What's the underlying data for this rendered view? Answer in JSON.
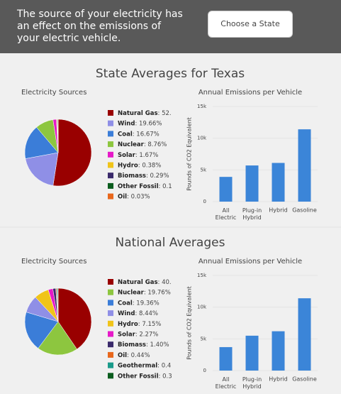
{
  "header": {
    "text": "The source of your electricity has an effect on the emissions of your electric vehicle.",
    "button": "Choose a State"
  },
  "sections": [
    "State Averages for Texas",
    "National Averages"
  ],
  "chart_data": [
    {
      "type": "pie",
      "title": "Electricity Sources",
      "categories": [
        "Natural Gas",
        "Wind",
        "Coal",
        "Nuclear",
        "Solar",
        "Hydro",
        "Biomass",
        "Other Fossil",
        "Oil"
      ],
      "values": [
        52.44,
        19.66,
        16.67,
        8.76,
        1.67,
        0.38,
        0.29,
        0.1,
        0.03
      ],
      "value_labels": [
        ": 52.",
        ": 19.66%",
        ": 16.67%",
        ": 8.76%",
        ": 1.67%",
        ": 0.38%",
        ": 0.29%",
        ": 0.1",
        ": 0.03%"
      ],
      "colors": [
        "#990000",
        "#8f8fe6",
        "#3b7dd8",
        "#8dc63f",
        "#e619c8",
        "#f0c419",
        "#3a2a6b",
        "#0b5d1e",
        "#e8671c"
      ]
    },
    {
      "type": "bar",
      "title": "Annual Emissions per Vehicle",
      "y_label": "Pounds of CO2 Equivalent",
      "categories": [
        "All Electric",
        "Plug-in Hybrid",
        "Hybrid",
        "Gasoline"
      ],
      "values": [
        3900,
        5700,
        6100,
        11400
      ],
      "color": "#3b85d8",
      "ylim": [
        0,
        15000
      ],
      "yticks": [
        0,
        {
          "value": 5000,
          "label": "5k"
        },
        {
          "value": 10000,
          "label": "10k"
        },
        {
          "value": 15000,
          "label": "15k"
        }
      ]
    },
    {
      "type": "pie",
      "title": "Electricity Sources",
      "categories": [
        "Natural Gas",
        "Nuclear",
        "Coal",
        "Wind",
        "Hydro",
        "Solar",
        "Biomass",
        "Oil",
        "Geothermal",
        "Other Fossil"
      ],
      "values": [
        40.48,
        19.76,
        19.36,
        8.44,
        7.15,
        2.27,
        1.4,
        0.44,
        0.4,
        0.3
      ],
      "value_labels": [
        ": 40.",
        ": 19.76%",
        ": 19.36%",
        ": 8.44%",
        ": 7.15%",
        ": 2.27%",
        ": 1.40%",
        ": 0.44%",
        ": 0.4",
        ": 0.3"
      ],
      "colors": [
        "#990000",
        "#8dc63f",
        "#3b7dd8",
        "#8f8fe6",
        "#f0c419",
        "#e619c8",
        "#3a2a6b",
        "#e8671c",
        "#1a9a8a",
        "#0b5d1e"
      ]
    },
    {
      "type": "bar",
      "title": "Annual Emissions per Vehicle",
      "y_label": "Pounds of CO2 Equivalent",
      "categories": [
        "All Electric",
        "Plug-in Hybrid",
        "Hybrid",
        "Gasoline"
      ],
      "values": [
        3700,
        5500,
        6200,
        11400
      ],
      "color": "#3b85d8",
      "ylim": [
        0,
        15000
      ],
      "yticks": [
        0,
        {
          "value": 5000,
          "label": "5k"
        },
        {
          "value": 10000,
          "label": "10k"
        },
        {
          "value": 15000,
          "label": "15k"
        }
      ]
    }
  ]
}
